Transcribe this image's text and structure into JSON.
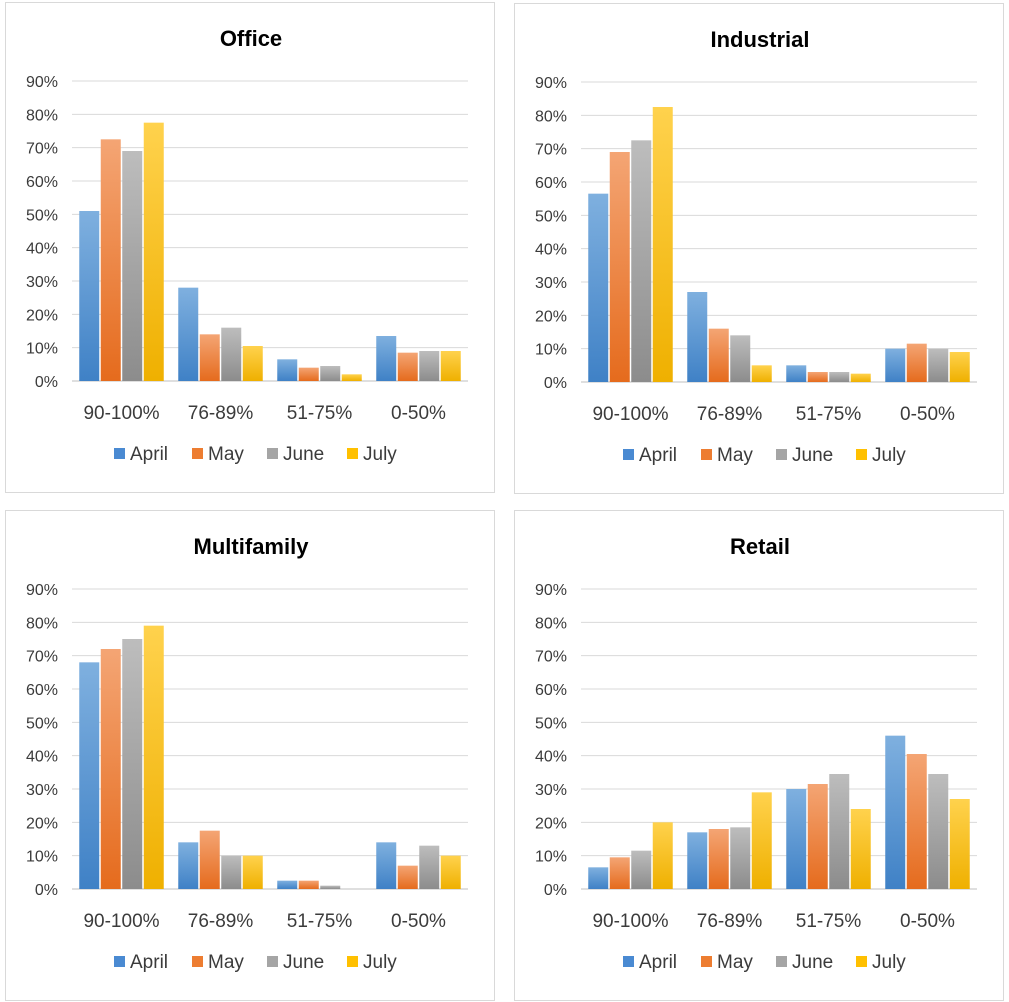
{
  "chart_data": [
    {
      "type": "bar",
      "title": "Office",
      "categories": [
        "90-100%",
        "76-89%",
        "51-75%",
        "0-50%"
      ],
      "series": [
        {
          "name": "April",
          "values": [
            51,
            28,
            6.5,
            13.5
          ]
        },
        {
          "name": "May",
          "values": [
            72.5,
            14,
            4,
            8.5
          ]
        },
        {
          "name": "June",
          "values": [
            69,
            16,
            4.5,
            9
          ]
        },
        {
          "name": "July",
          "values": [
            77.5,
            10.5,
            2,
            9
          ]
        }
      ],
      "yticks": [
        "0%",
        "10%",
        "20%",
        "30%",
        "40%",
        "50%",
        "60%",
        "70%",
        "80%",
        "90%"
      ],
      "ylim": [
        0,
        90
      ],
      "grid": true,
      "legend": "bottom"
    },
    {
      "type": "bar",
      "title": "Industrial",
      "categories": [
        "90-100%",
        "76-89%",
        "51-75%",
        "0-50%"
      ],
      "series": [
        {
          "name": "April",
          "values": [
            56.5,
            27,
            5,
            10
          ]
        },
        {
          "name": "May",
          "values": [
            69,
            16,
            3,
            11.5
          ]
        },
        {
          "name": "June",
          "values": [
            72.5,
            14,
            3,
            10
          ]
        },
        {
          "name": "July",
          "values": [
            82.5,
            5,
            2.5,
            9
          ]
        }
      ],
      "yticks": [
        "0%",
        "10%",
        "20%",
        "30%",
        "40%",
        "50%",
        "60%",
        "70%",
        "80%",
        "90%"
      ],
      "ylim": [
        0,
        90
      ],
      "grid": true,
      "legend": "bottom"
    },
    {
      "type": "bar",
      "title": "Multifamily",
      "categories": [
        "90-100%",
        "76-89%",
        "51-75%",
        "0-50%"
      ],
      "series": [
        {
          "name": "April",
          "values": [
            68,
            14,
            2.5,
            14
          ]
        },
        {
          "name": "May",
          "values": [
            72,
            17.5,
            2.5,
            7
          ]
        },
        {
          "name": "June",
          "values": [
            75,
            10,
            1,
            13
          ]
        },
        {
          "name": "July",
          "values": [
            79,
            10,
            0,
            10
          ]
        }
      ],
      "yticks": [
        "0%",
        "10%",
        "20%",
        "30%",
        "40%",
        "50%",
        "60%",
        "70%",
        "80%",
        "90%"
      ],
      "ylim": [
        0,
        90
      ],
      "grid": true,
      "legend": "bottom"
    },
    {
      "type": "bar",
      "title": "Retail",
      "categories": [
        "90-100%",
        "76-89%",
        "51-75%",
        "0-50%"
      ],
      "series": [
        {
          "name": "April",
          "values": [
            6.5,
            17,
            30,
            46
          ]
        },
        {
          "name": "May",
          "values": [
            9.5,
            18,
            31.5,
            40.5
          ]
        },
        {
          "name": "June",
          "values": [
            11.5,
            18.5,
            34.5,
            34.5
          ]
        },
        {
          "name": "July",
          "values": [
            20,
            29,
            24,
            27
          ]
        }
      ],
      "yticks": [
        "0%",
        "10%",
        "20%",
        "30%",
        "40%",
        "50%",
        "60%",
        "70%",
        "80%",
        "90%"
      ],
      "ylim": [
        0,
        90
      ],
      "grid": true,
      "legend": "bottom"
    }
  ],
  "colors": {
    "April": [
      "#7fb0df",
      "#3f81c6"
    ],
    "May": [
      "#f4a574",
      "#e56b1d"
    ],
    "June": [
      "#bdbdbd",
      "#8c8c8c"
    ],
    "July": [
      "#ffd24d",
      "#efb000"
    ],
    "legend": {
      "April": "#4a8ad2",
      "May": "#ed7d31",
      "June": "#a5a5a5",
      "July": "#ffc000"
    },
    "grid": "#d9d9d9",
    "axis": "#bfbfbf",
    "text": "#3b3b3b"
  }
}
